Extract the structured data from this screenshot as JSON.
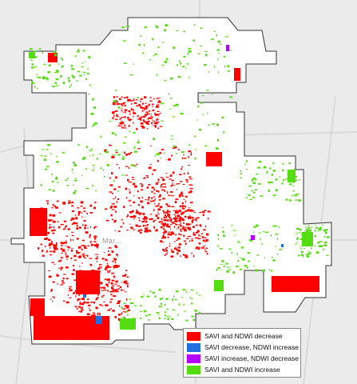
{
  "map": {
    "city_label": "Mar...",
    "colors": {
      "savi_ndwi_decrease": "#ff0000",
      "savi_decrease_ndwi_increase": "#1f6fe0",
      "savi_increase_ndwi_decrease": "#b400ff",
      "savi_ndwi_increase": "#55dd11",
      "boundary_fill": "#ffffff",
      "boundary_stroke": "#333333",
      "basemap": "#ebebeb"
    }
  },
  "legend": {
    "items": [
      {
        "label": "SAVI and NDWI decrease",
        "color": "#ff0000"
      },
      {
        "label": "SAVI decrease, NDWI increase",
        "color": "#1f6fe0"
      },
      {
        "label": "SAVI increase, NDWI decrease",
        "color": "#b400ff"
      },
      {
        "label": "SAVI and NDWI increase",
        "color": "#55dd11"
      }
    ]
  }
}
